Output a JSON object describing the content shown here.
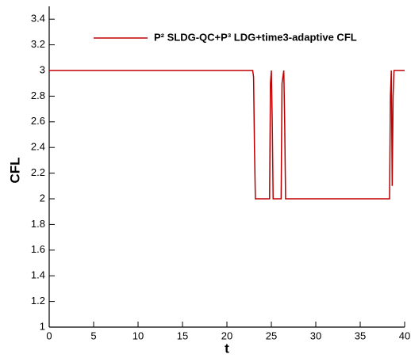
{
  "chart_data": {
    "type": "line",
    "x_label": "t",
    "y_label": "CFL",
    "xlim": [
      0,
      40
    ],
    "xticks": [
      0,
      5,
      10,
      15,
      20,
      25,
      30,
      35,
      40
    ],
    "ylim": [
      1,
      3.5
    ],
    "yticks": [
      1,
      1.2,
      1.4,
      1.6,
      1.8,
      2,
      2.2,
      2.4,
      2.6,
      2.8,
      3,
      3.2,
      3.4
    ],
    "legend_position": "upper right",
    "series": [
      {
        "name": "P² SLDG-QC+P³ LDG+time3-adaptive CFL",
        "color": "#c00000",
        "x": [
          0,
          22.9,
          23.0,
          23.1,
          23.2,
          24.8,
          24.9,
          25.0,
          25.1,
          25.2,
          26.1,
          26.2,
          26.4,
          26.5,
          26.6,
          38.3,
          38.4,
          38.5,
          38.6,
          38.7,
          38.8,
          40
        ],
        "values": [
          3,
          3,
          2.95,
          2.4,
          2,
          2,
          2.9,
          3,
          2.6,
          2,
          2,
          2.9,
          3,
          2.6,
          2,
          2,
          2.8,
          3,
          2.1,
          2.8,
          3,
          3
        ]
      }
    ]
  }
}
